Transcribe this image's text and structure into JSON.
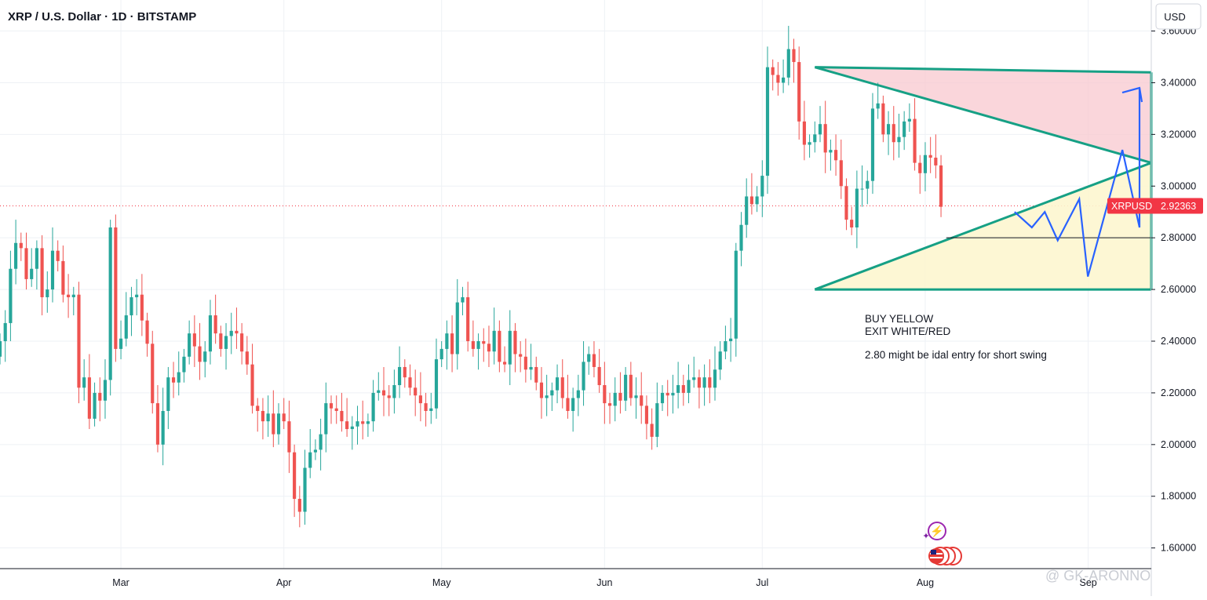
{
  "header": {
    "title": "XRP / U.S. Dollar · 1D · BITSTAMP",
    "currency_button": "USD"
  },
  "price_label": {
    "symbol": "XRPUSD",
    "value": "2.92363",
    "color": "#f23645"
  },
  "annotations": {
    "line1": "BUY YELLOW",
    "line2": "EXIT WHITE/RED",
    "line3": "2.80 might be idal entry for short swing"
  },
  "watermark": "@ GK-ARONNO",
  "colors": {
    "up": "#26a69a",
    "down": "#ef5350",
    "pattern_lines": "#16a085",
    "projection": "#2962ff",
    "red_zone": "#f8c8cf",
    "yellow_zone": "#fdf6cf",
    "grid": "#eef1f5"
  },
  "chart_data": {
    "type": "candlestick",
    "title": "XRP / U.S. Dollar · 1D · BITSTAMP",
    "xlabel": "",
    "ylabel": "",
    "ylim": [
      1.52,
      3.72
    ],
    "y_ticks": [
      "3.60000",
      "3.40000",
      "3.20000",
      "3.00000",
      "2.80000",
      "2.60000",
      "2.40000",
      "2.20000",
      "2.00000",
      "1.80000",
      "1.60000"
    ],
    "x_ticks": [
      "Mar",
      "Apr",
      "May",
      "Jun",
      "Jul",
      "Aug",
      "Sep"
    ],
    "x_tick_dates": [
      "2025-03-01",
      "2025-04-01",
      "2025-05-01",
      "2025-06-01",
      "2025-07-01",
      "2025-08-01",
      "2025-09-01"
    ],
    "x_range": [
      "2025-02-06",
      "2025-09-13"
    ],
    "grid": true,
    "last_price": 2.92363,
    "candles": {
      "start_date": "2025-02-06",
      "closes": [
        2.4,
        2.47,
        2.68,
        2.78,
        2.76,
        2.64,
        2.68,
        2.76,
        2.57,
        2.6,
        2.75,
        2.71,
        2.58,
        2.57,
        2.58,
        2.22,
        2.26,
        2.1,
        2.2,
        2.17,
        2.25,
        2.84,
        2.37,
        2.41,
        2.5,
        2.57,
        2.58,
        2.48,
        2.39,
        2.16,
        2.0,
        2.13,
        2.26,
        2.24,
        2.28,
        2.34,
        2.43,
        2.38,
        2.32,
        2.36,
        2.5,
        2.43,
        2.37,
        2.42,
        2.44,
        2.43,
        2.36,
        2.31,
        2.15,
        2.13,
        2.09,
        2.12,
        2.04,
        2.12,
        2.09,
        1.97,
        1.79,
        1.74,
        1.91,
        1.97,
        1.98,
        2.04,
        2.16,
        2.14,
        2.13,
        2.09,
        2.06,
        2.07,
        2.09,
        2.08,
        2.09,
        2.2,
        2.21,
        2.19,
        2.18,
        2.23,
        2.3,
        2.26,
        2.22,
        2.19,
        2.16,
        2.13,
        2.14,
        2.33,
        2.37,
        2.43,
        2.35,
        2.55,
        2.57,
        2.4,
        2.37,
        2.4,
        2.39,
        2.36,
        2.44,
        2.32,
        2.31,
        2.44,
        2.35,
        2.34,
        2.29,
        2.3,
        2.24,
        2.18,
        2.19,
        2.21,
        2.26,
        2.18,
        2.13,
        2.18,
        2.21,
        2.32,
        2.35,
        2.3,
        2.23,
        2.16,
        2.15,
        2.2,
        2.17,
        2.27,
        2.18,
        2.19,
        2.15,
        2.08,
        2.03,
        2.16,
        2.2,
        2.19,
        2.2,
        2.23,
        2.2,
        2.25,
        2.26,
        2.22,
        2.26,
        2.22,
        2.29,
        2.36,
        2.4,
        2.41,
        2.75,
        2.85,
        2.96,
        2.93,
        2.96,
        3.04,
        3.46,
        3.43,
        3.4,
        3.42,
        3.53,
        3.48,
        3.25,
        3.16,
        3.17,
        3.2,
        3.24,
        3.13,
        3.14,
        3.1,
        3.0,
        2.87,
        2.84,
        2.99,
        2.99,
        3.02,
        3.3,
        3.32,
        3.2,
        3.24,
        3.17,
        3.19,
        3.25,
        3.26,
        3.09,
        3.05,
        3.12,
        3.11,
        3.08,
        2.92
      ]
    }
  }
}
